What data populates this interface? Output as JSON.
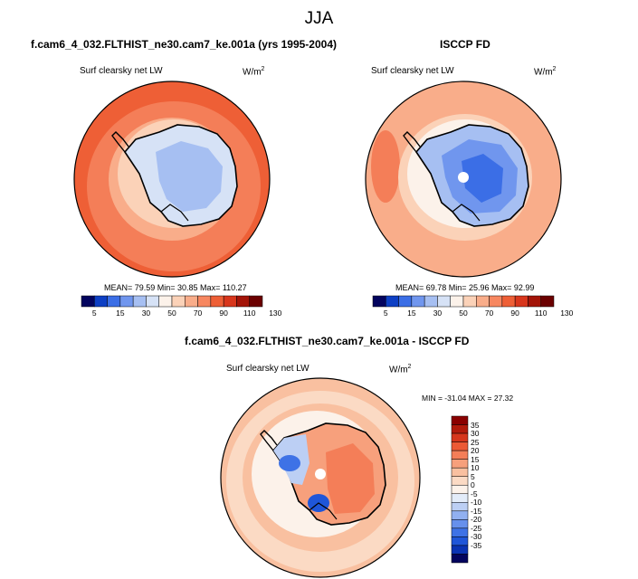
{
  "page_title": "JJA",
  "colors": {
    "scale": [
      "#03045e",
      "#0d3fc4",
      "#3b6ee6",
      "#7096ee",
      "#a6bff2",
      "#d6e2f6",
      "#fcf2ea",
      "#fbd2b8",
      "#f9ad8a",
      "#f78760",
      "#ee5f36",
      "#d8361c",
      "#a31408",
      "#6b0000"
    ],
    "diff_scale": [
      "#03045e",
      "#0a33b3",
      "#1f56d9",
      "#3e72e6",
      "#6690ec",
      "#91b0f0",
      "#bccff4",
      "#e3ecf9",
      "#fcf2ea",
      "#fbdac4",
      "#f9c0a0",
      "#f7a07c",
      "#f47e58",
      "#ec5a35",
      "#d6361c",
      "#b11a0b",
      "#8a0000"
    ],
    "land_outline": "#000000",
    "pole_hole": "#ffffff"
  },
  "panels": [
    {
      "title": "f.cam6_4_032.FLTHIST_ne30.cam7_ke.001a (yrs 1995-2004)",
      "variable": "Surf clearsky net LW",
      "units": "W/m",
      "units_sup": "2",
      "stats": "MEAN=  79.59  Min=  30.85  Max= 110.27"
    },
    {
      "title": "ISCCP FD",
      "variable": "Surf clearsky net LW",
      "units": "W/m",
      "units_sup": "2",
      "stats": "MEAN=  69.78  Min=  25.96  Max=  92.99"
    },
    {
      "title": "f.cam6_4_032.FLTHIST_ne30.cam7_ke.001a - ISCCP FD",
      "variable": "Surf clearsky net LW",
      "units": "W/m",
      "units_sup": "2",
      "stats": "MIN = -31.04 MAX =  27.32"
    }
  ],
  "chart_data": [
    {
      "type": "heatmap",
      "projection": "south-polar-stereographic",
      "title": "f.cam6_4_032.FLTHIST_ne30.cam7_ke.001a (yrs 1995-2004)",
      "variable": "Surf clearsky net LW",
      "units": "W/m2",
      "mean": 79.59,
      "min": 30.85,
      "max": 110.27,
      "colorbar_ticks": [
        5,
        15,
        30,
        50,
        70,
        90,
        110,
        130
      ]
    },
    {
      "type": "heatmap",
      "projection": "south-polar-stereographic",
      "title": "ISCCP FD",
      "variable": "Surf clearsky net LW",
      "units": "W/m2",
      "mean": 69.78,
      "min": 25.96,
      "max": 92.99,
      "colorbar_ticks": [
        5,
        15,
        30,
        50,
        70,
        90,
        110,
        130
      ]
    },
    {
      "type": "heatmap",
      "projection": "south-polar-stereographic",
      "title": "f.cam6_4_032.FLTHIST_ne30.cam7_ke.001a - ISCCP FD",
      "variable": "Surf clearsky net LW",
      "units": "W/m2",
      "min": -31.04,
      "max": 27.32,
      "colorbar_ticks": [
        35,
        30,
        25,
        20,
        15,
        10,
        5,
        0,
        -5,
        -10,
        -15,
        -20,
        -25,
        -30,
        -35
      ]
    }
  ]
}
